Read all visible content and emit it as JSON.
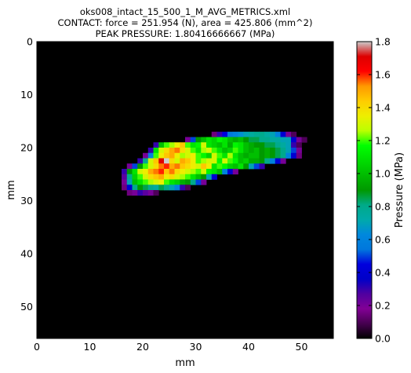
{
  "chart_data": {
    "type": "heatmap",
    "title": [
      "oks008_intact_15_500_1_M_AVG_METRICS.xml",
      "CONTACT: force = 251.954 (N), area = 425.806 (mm^2)",
      "PEAK PRESSURE: 1.80416666667 (MPa)"
    ],
    "xlabel": "mm",
    "ylabel": "mm",
    "xlim": [
      0,
      56
    ],
    "ylim": [
      56,
      0
    ],
    "x_ticks": [
      0,
      10,
      20,
      30,
      40,
      50
    ],
    "y_ticks": [
      0,
      10,
      20,
      30,
      40,
      50
    ],
    "colorbar": {
      "label": "Pressure (MPa)",
      "range": [
        0.0,
        1.8
      ],
      "ticks": [
        "0.0",
        "0.2",
        "0.4",
        "0.6",
        "0.8",
        "1.0",
        "1.2",
        "1.4",
        "1.6",
        "1.8"
      ]
    },
    "colormap": "nipy_spectral",
    "background_value": 0.0,
    "contact_region": {
      "peak_value": 1.80416666667,
      "peak_cell": [
        23,
        22
      ],
      "rows": [
        {
          "y": 17,
          "x_start": 33,
          "values": [
            0.15,
            0.3,
            0.45,
            0.55,
            0.6,
            0.65,
            0.7,
            0.75,
            0.78,
            0.8,
            0.75,
            0.7,
            0.6,
            0.4,
            0.2,
            0.1
          ]
        },
        {
          "y": 18,
          "x_start": 28,
          "values": [
            0.2,
            0.5,
            0.9,
            1.0,
            1.1,
            1.05,
            1.15,
            1.1,
            1.0,
            0.95,
            1.0,
            0.9,
            0.85,
            0.85,
            0.8,
            0.8,
            0.75,
            0.75,
            0.7,
            0.7,
            0.4,
            0.2,
            0.1
          ]
        },
        {
          "y": 19,
          "x_start": 22,
          "values": [
            0.3,
            1.0,
            1.2,
            1.25,
            1.35,
            1.45,
            1.2,
            1.1,
            1.15,
            1.3,
            1.1,
            1.05,
            1.0,
            1.1,
            0.95,
            1.15,
            1.1,
            1.0,
            0.95,
            0.9,
            0.9,
            0.85,
            0.85,
            0.8,
            0.75,
            0.7,
            0.3,
            0.1
          ]
        },
        {
          "y": 20,
          "x_start": 21,
          "values": [
            0.3,
            1.1,
            1.3,
            1.4,
            1.5,
            1.55,
            1.4,
            1.3,
            1.2,
            1.1,
            1.25,
            1.3,
            1.2,
            1.1,
            1.0,
            1.05,
            1.2,
            1.1,
            1.0,
            0.95,
            1.0,
            0.9,
            0.95,
            0.9,
            0.85,
            0.8,
            0.7,
            0.5,
            0.2
          ]
        },
        {
          "y": 21,
          "x_start": 20,
          "values": [
            0.2,
            0.6,
            1.2,
            1.35,
            1.45,
            1.5,
            1.35,
            1.25,
            1.3,
            1.35,
            1.2,
            1.15,
            1.05,
            1.3,
            1.2,
            1.1,
            1.25,
            1.1,
            1.0,
            0.95,
            1.0,
            1.0,
            0.9,
            0.95,
            0.9,
            0.85,
            0.8,
            0.6,
            0.4,
            0.15
          ]
        },
        {
          "y": 22,
          "x_start": 19,
          "values": [
            0.3,
            0.8,
            1.3,
            1.45,
            1.7,
            1.8,
            1.4,
            1.3,
            1.5,
            1.45,
            1.35,
            1.2,
            1.25,
            1.3,
            1.3,
            1.15,
            1.3,
            1.2,
            1.15,
            1.0,
            1.05,
            0.95,
            0.95,
            0.9,
            0.8,
            0.6,
            0.4,
            0.2
          ]
        },
        {
          "y": 23,
          "x_start": 17,
          "values": [
            0.2,
            0.5,
            0.9,
            1.2,
            1.3,
            1.4,
            1.55,
            1.6,
            1.5,
            1.55,
            1.45,
            1.4,
            1.35,
            1.3,
            1.45,
            1.35,
            1.1,
            1.2,
            1.15,
            1.05,
            1.0,
            1.1,
            0.9,
            0.7,
            0.5,
            0.3
          ]
        },
        {
          "y": 24,
          "x_start": 16,
          "values": [
            0.3,
            0.9,
            1.1,
            1.3,
            1.35,
            1.5,
            1.55,
            1.6,
            1.45,
            1.55,
            1.4,
            1.35,
            1.3,
            1.25,
            1.2,
            1.3,
            1.15,
            1.1,
            1.0,
            0.6,
            0.4,
            0.2
          ]
        },
        {
          "y": 25,
          "x_start": 16,
          "values": [
            0.25,
            0.8,
            1.05,
            1.2,
            1.3,
            1.4,
            1.45,
            1.5,
            1.35,
            1.4,
            1.3,
            1.25,
            1.2,
            1.1,
            1.0,
            0.9,
            0.7,
            0.4
          ]
        },
        {
          "y": 26,
          "x_start": 16,
          "values": [
            0.2,
            0.7,
            1.0,
            1.1,
            1.2,
            1.25,
            1.3,
            1.35,
            1.2,
            1.1,
            1.05,
            0.95,
            0.9,
            0.8,
            0.5,
            0.2
          ]
        },
        {
          "y": 27,
          "x_start": 16,
          "values": [
            0.15,
            0.4,
            0.8,
            0.9,
            0.85,
            0.8,
            0.75,
            0.85,
            0.8,
            0.7,
            0.6,
            0.3,
            0.1
          ]
        },
        {
          "y": 28,
          "x_start": 17,
          "values": [
            0.15,
            0.2,
            0.3,
            0.25,
            0.2,
            0.1
          ]
        }
      ]
    }
  }
}
